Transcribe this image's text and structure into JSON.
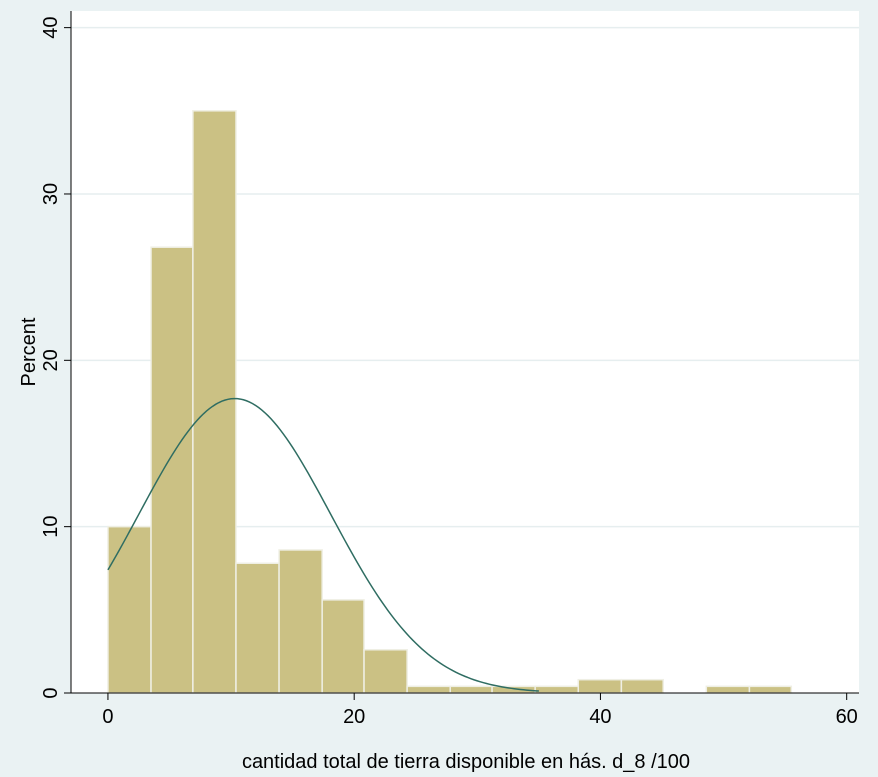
{
  "chart_data": {
    "type": "bar",
    "subtype": "histogram-with-normal-density",
    "title": "",
    "xlabel": "cantidad total de tierra disponible en hás. d_8 /100",
    "ylabel": "Percent",
    "xlim": [
      -3,
      61
    ],
    "ylim": [
      0,
      41
    ],
    "xticks": [
      0,
      20,
      40,
      60
    ],
    "yticks": [
      0,
      10,
      20,
      30,
      40
    ],
    "grid": true,
    "bins": [
      {
        "x0": 0.0,
        "x1": 3.5,
        "value": 10.0
      },
      {
        "x0": 3.5,
        "x1": 6.9,
        "value": 26.8
      },
      {
        "x0": 6.9,
        "x1": 10.4,
        "value": 35.0
      },
      {
        "x0": 10.4,
        "x1": 13.9,
        "value": 7.8
      },
      {
        "x0": 13.9,
        "x1": 17.4,
        "value": 8.6
      },
      {
        "x0": 17.4,
        "x1": 20.8,
        "value": 5.6
      },
      {
        "x0": 20.8,
        "x1": 24.3,
        "value": 2.6
      },
      {
        "x0": 24.3,
        "x1": 27.8,
        "value": 0.4
      },
      {
        "x0": 27.8,
        "x1": 31.2,
        "value": 0.4
      },
      {
        "x0": 31.2,
        "x1": 34.7,
        "value": 0.4
      },
      {
        "x0": 34.7,
        "x1": 38.2,
        "value": 0.4
      },
      {
        "x0": 38.2,
        "x1": 41.7,
        "value": 0.8
      },
      {
        "x0": 41.7,
        "x1": 45.1,
        "value": 0.8
      },
      {
        "x0": 45.1,
        "x1": 48.6,
        "value": 0.0
      },
      {
        "x0": 48.6,
        "x1": 52.1,
        "value": 0.4
      },
      {
        "x0": 52.1,
        "x1": 55.5,
        "value": 0.4
      }
    ],
    "normal_curve": {
      "mean": 10.3,
      "sd": 7.8,
      "peak": 17.7,
      "x_range": [
        0,
        35
      ]
    },
    "colors": {
      "bar_fill": "#cbc184",
      "bar_edge": "#efefe4",
      "curve": "#2f6d62",
      "grid": "#e6eeef",
      "plot_bg": "#ffffff",
      "page_bg": "#eaf2f3"
    }
  }
}
